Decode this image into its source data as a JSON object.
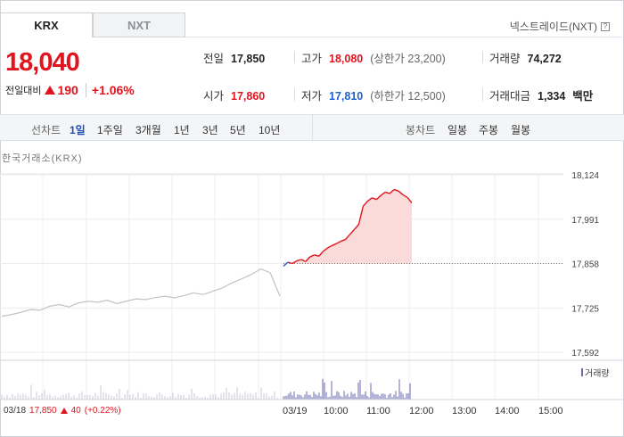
{
  "tabs": [
    {
      "label": "KRX",
      "active": true
    },
    {
      "label": "NXT",
      "active": false
    }
  ],
  "nxt_link": "넥스트레이드(NXT)",
  "help_glyph": "?",
  "price": {
    "current": "18,040",
    "change_label": "전일대비",
    "change_amount": "190",
    "change_pct": "+1.06%"
  },
  "stats": {
    "prev_close": {
      "label": "전일",
      "value": "17,850"
    },
    "high": {
      "label": "고가",
      "value": "18,080",
      "sub": "(상한가 23,200)"
    },
    "volume": {
      "label": "거래량",
      "value": "74,272"
    },
    "open": {
      "label": "시가",
      "value": "17,860"
    },
    "low": {
      "label": "저가",
      "value": "17,810",
      "sub": "(하한가 12,500)"
    },
    "amount": {
      "label": "거래대금",
      "value": "1,334",
      "unit": "백만"
    }
  },
  "period_bar": {
    "line_label": "선차트",
    "line_periods": [
      "1일",
      "1주일",
      "3개월",
      "1년",
      "3년",
      "5년",
      "10년"
    ],
    "selected": "1일",
    "candle_label": "봉차트",
    "candle_periods": [
      "일봉",
      "주봉",
      "월봉"
    ]
  },
  "exchange_label": "한국거래소(KRX)",
  "chart_data": {
    "type": "line",
    "y_ticks": [
      "18,124",
      "17,991",
      "17,858",
      "17,725",
      "17,592"
    ],
    "ylim": [
      17592,
      18124
    ],
    "x_ticks": [
      "03/19",
      "10:00",
      "11:00",
      "12:00",
      "13:00",
      "14:00",
      "15:00"
    ],
    "reference_price": 17858,
    "series": [
      {
        "values": [
          17700,
          17705,
          17712,
          17720,
          17718,
          17730,
          17735,
          17728,
          17740,
          17745,
          17742,
          17748,
          17738,
          17745,
          17752,
          17750,
          17756,
          17760,
          17755,
          17762,
          17770,
          17765,
          17775,
          17785,
          17800,
          17812,
          17825,
          17842,
          17830,
          17760
        ]
      },
      {
        "values": [
          17850,
          17862,
          17858,
          17866,
          17870,
          17864,
          17878,
          17884,
          17880,
          17895,
          17905,
          17912,
          17918,
          17925,
          17930,
          17945,
          17960,
          17975,
          18030,
          18045,
          18055,
          18050,
          18062,
          18072,
          18068,
          18080,
          18075,
          18064,
          18056,
          18040
        ]
      }
    ],
    "volume_label": "거래량"
  },
  "footer": {
    "prev_date": "03/18",
    "prev_close": "17,850",
    "prev_change": "40",
    "prev_pct": "(+0.22%)"
  },
  "colors": {
    "up": "#e0141e",
    "down": "#1f5fcf",
    "prev_line": "#c3c3c3",
    "fill": "#fbdada",
    "volume": "#6a6ab0"
  }
}
